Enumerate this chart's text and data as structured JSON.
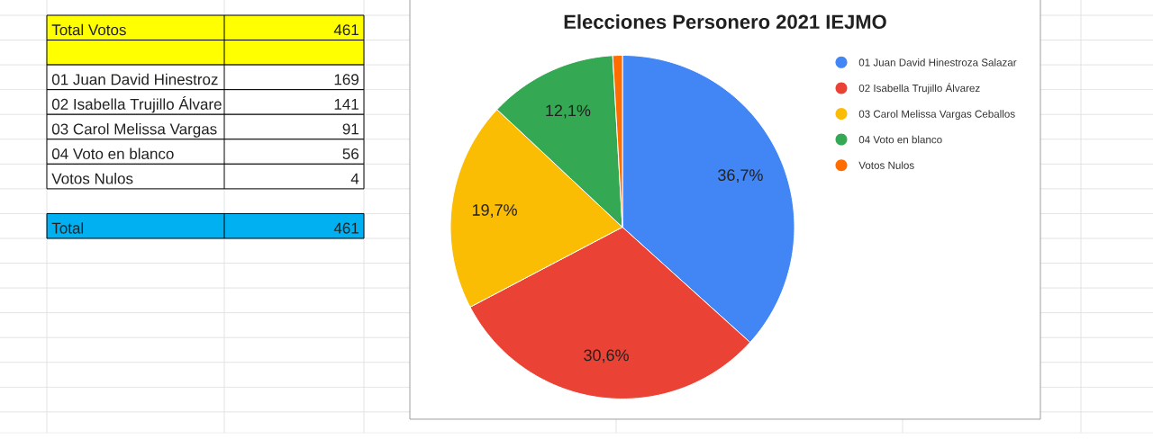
{
  "chart_data": [
    {
      "type": "other",
      "categories": [
        "Total Votos",
        null,
        "01 Juan David Hinestroz",
        "02 Isabella Trujillo Álvare",
        "03 Carol Melissa Vargas",
        "04 Voto en blanco",
        "Votos Nulos",
        null,
        "Total"
      ],
      "values": [
        461,
        null,
        169,
        141,
        91,
        56,
        4,
        null,
        461
      ],
      "colors": [
        "#ffff00",
        "#ffff00",
        "#ffffff",
        "#ffffff",
        "#ffffff",
        "#ffffff",
        "#ffffff",
        null,
        "#00b0f0"
      ],
      "data_labels": true
    },
    {
      "type": "pie",
      "title": "Elecciones Personero 2021 IEJMO",
      "categories": [
        "01 Juan David Hinestroza Salazar",
        "02 Isabella Trujillo Álvarez",
        "03 Carol Melissa Vargas Ceballos",
        "04 Voto en blanco",
        "Votos Nulos"
      ],
      "values": [
        36.7,
        30.6,
        19.7,
        12.1,
        0.9
      ],
      "colors": [
        "#4285f4",
        "#ea4335",
        "#fbbc04",
        "#34a853",
        "#ff6d01"
      ],
      "value_labels": [
        "36,7%",
        "30,6%",
        "19,7%",
        "12,1%",
        null
      ],
      "legend": "top right"
    }
  ]
}
